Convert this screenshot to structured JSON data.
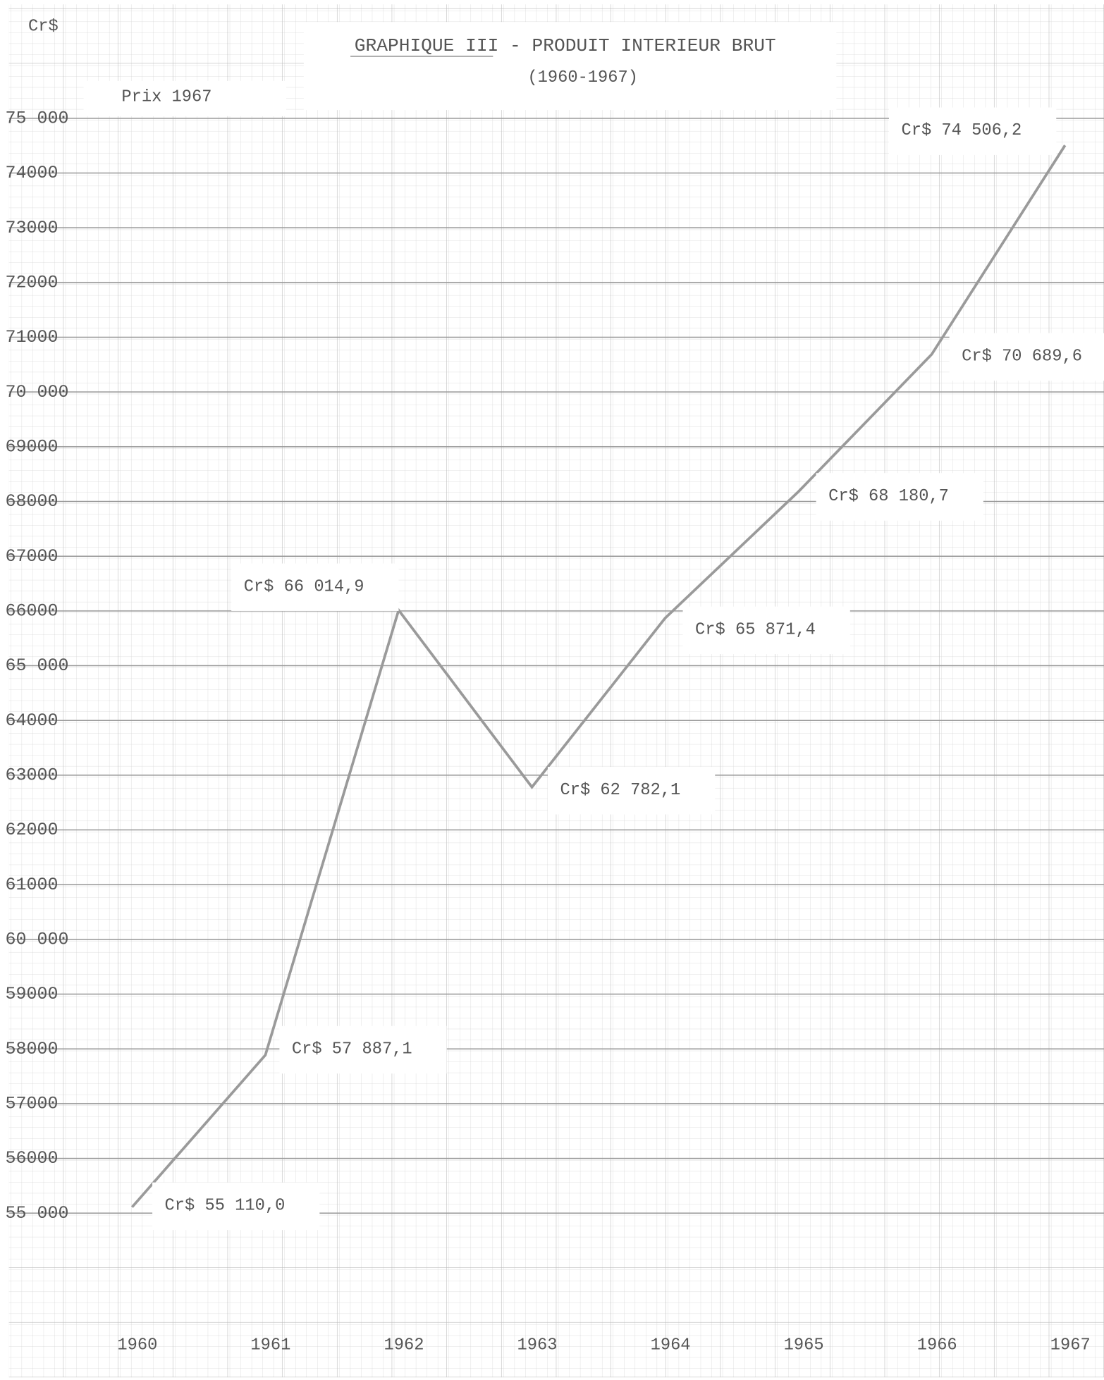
{
  "chart_data": {
    "type": "line",
    "title": "GRAPHIQUE III - PRODUIT INTERIEUR BRUT",
    "subtitle": "(1960-1967)",
    "annotation": "Prix 1967",
    "y_label": "Cr$",
    "categories": [
      "1960",
      "1961",
      "1962",
      "1963",
      "1964",
      "1965",
      "1966",
      "1967"
    ],
    "series": [
      {
        "name": "Produit Interieur Brut",
        "color": "#9a9a9a",
        "values": [
          55110.0,
          57887.1,
          66014.9,
          62782.1,
          65871.4,
          68180.7,
          70689.6,
          74506.2
        ],
        "value_labels": [
          "Cr$ 55 110,0",
          "Cr$ 57 887,1",
          "Cr$ 66 014,9",
          "Cr$ 62 782,1",
          "Cr$ 65 871,4",
          "Cr$ 68 180,7",
          "Cr$ 70 689,6",
          "Cr$ 74 506,2"
        ]
      }
    ],
    "ylim": [
      52000,
      77000
    ],
    "yticks": [
      {
        "value": 55000,
        "label": "55 000"
      },
      56000,
      57000,
      58000,
      59000,
      {
        "value": 60000,
        "label": "60 000"
      },
      61000,
      62000,
      63000,
      64000,
      {
        "value": 65000,
        "label": "65 000"
      },
      66000,
      67000,
      68000,
      69000,
      {
        "value": 70000,
        "label": "70 000"
      },
      71000,
      72000,
      73000,
      74000,
      {
        "value": 75000,
        "label": "75 000"
      }
    ],
    "grid": true
  }
}
